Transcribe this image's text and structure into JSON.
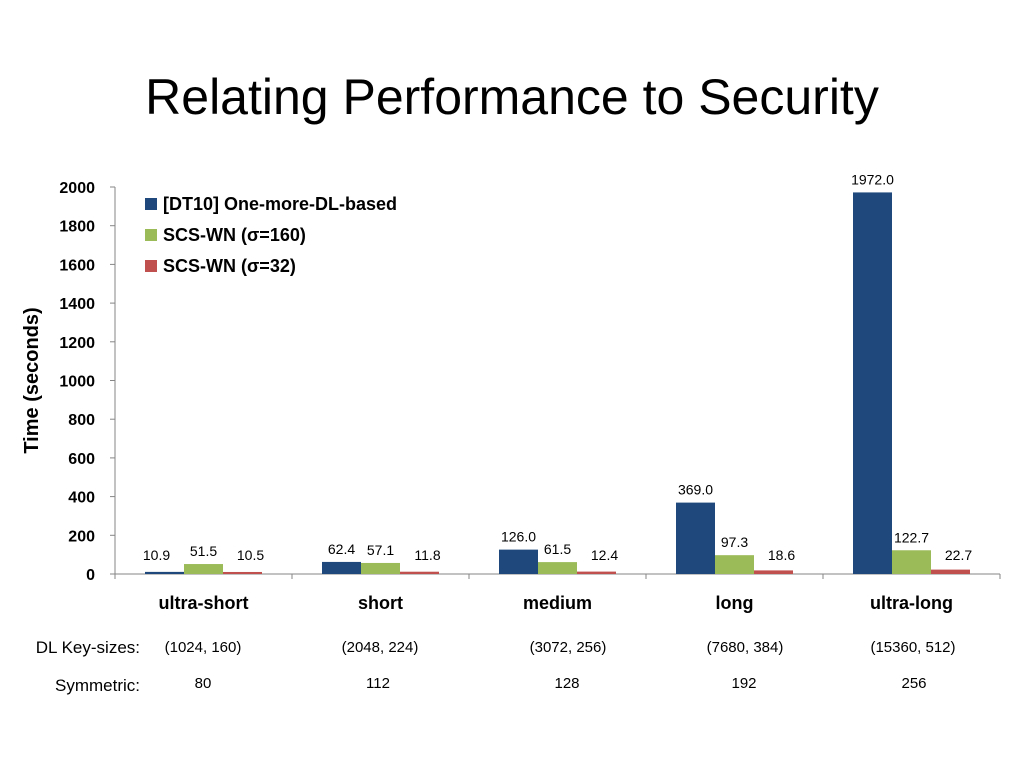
{
  "slide": {
    "title": "Relating Performance to Security"
  },
  "chart_data": {
    "type": "bar",
    "categories": [
      "ultra-short",
      "short",
      "medium",
      "long",
      "ultra-long"
    ],
    "series": [
      {
        "name": "[DT10] One-more-DL-based",
        "values": [
          10.9,
          62.4,
          126.0,
          369.0,
          1972.0
        ],
        "color": "#1f497d"
      },
      {
        "name": "SCS-WN (σ=160)",
        "values": [
          51.5,
          57.1,
          61.5,
          97.3,
          122.7
        ],
        "color": "#9bbb59"
      },
      {
        "name": "SCS-WN (σ=32)",
        "values": [
          10.5,
          11.8,
          12.4,
          18.6,
          22.7
        ],
        "color": "#c0504d"
      }
    ],
    "data_labels": [
      [
        "10.9",
        "62.4",
        "126.0",
        "369.0",
        "1972.0"
      ],
      [
        "51.5",
        "57.1",
        "61.5",
        "97.3",
        "122.7"
      ],
      [
        "10.5",
        "11.8",
        "12.4",
        "18.6",
        "22.7"
      ]
    ],
    "ylabel": "Time (seconds)",
    "ylim": [
      0,
      2000
    ],
    "yticks": [
      0,
      200,
      400,
      600,
      800,
      1000,
      1200,
      1400,
      1600,
      1800,
      2000
    ],
    "legend_position": "top-left",
    "grid": false
  },
  "table": {
    "dl_label": "DL Key-sizes:",
    "dl_values": [
      "(1024, 160)",
      "(2048, 224)",
      "(3072, 256)",
      "(7680, 384)",
      "(15360, 512)"
    ],
    "sym_label": "Symmetric:",
    "sym_values": [
      "80",
      "112",
      "128",
      "192",
      "256"
    ]
  }
}
